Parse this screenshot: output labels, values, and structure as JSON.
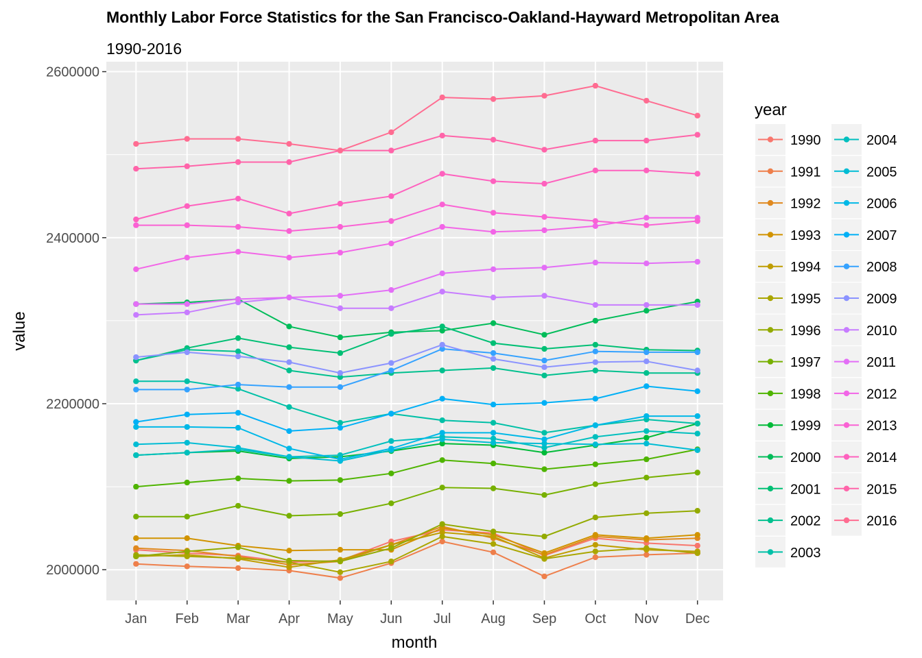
{
  "chart_data": {
    "type": "line",
    "title": "Monthly Labor Force Statistics for the San Francisco-Oakland-Hayward Metropolitan Area",
    "subtitle": "1990-2016",
    "xlabel": "month",
    "ylabel": "value",
    "categories": [
      "Jan",
      "Feb",
      "Mar",
      "Apr",
      "May",
      "Jun",
      "Jul",
      "Aug",
      "Sep",
      "Oct",
      "Nov",
      "Dec"
    ],
    "ylim": [
      1963000,
      2612000
    ],
    "yticks": [
      2000000,
      2200000,
      2400000,
      2600000
    ],
    "ytick_labels": [
      "2000000",
      "2200000",
      "2400000",
      "2600000"
    ],
    "grid": true,
    "legend_title": "year",
    "legend_placement": "right",
    "series": [
      {
        "name": "1990",
        "color": "#F8766D",
        "values": [
          2024000,
          2020000,
          2017000,
          2009000,
          2011000,
          2034000,
          2048000,
          2044000,
          2017000,
          2038000,
          2032000,
          2029000
        ]
      },
      {
        "name": "1991",
        "color": "#EE7F4B",
        "values": [
          2007000,
          2004000,
          2002000,
          1999000,
          1990000,
          2008000,
          2034000,
          2021000,
          1992000,
          2015000,
          2018000,
          2020000
        ]
      },
      {
        "name": "1992",
        "color": "#E0891F",
        "values": [
          2026000,
          2023000,
          2016000,
          2006000,
          2010000,
          2030000,
          2052000,
          2038000,
          2018000,
          2040000,
          2036000,
          2038000
        ]
      },
      {
        "name": "1993",
        "color": "#D19300",
        "values": [
          2038000,
          2038000,
          2029000,
          2023000,
          2024000,
          2024000,
          2050000,
          2042000,
          2020000,
          2042000,
          2038000,
          2042000
        ]
      },
      {
        "name": "1994",
        "color": "#BF9D00",
        "values": [
          2016000,
          2018000,
          2013000,
          2003000,
          2012000,
          2030000,
          2045000,
          2040000,
          2014000,
          2030000,
          2024000,
          2022000
        ]
      },
      {
        "name": "1995",
        "color": "#AAA600",
        "values": [
          2018000,
          2016000,
          2014000,
          2009000,
          1997000,
          2010000,
          2040000,
          2031000,
          2013000,
          2022000,
          2026000,
          2020000
        ]
      },
      {
        "name": "1996",
        "color": "#93AA00",
        "values": [
          2016000,
          2022000,
          2027000,
          2011000,
          2010000,
          2026000,
          2055000,
          2046000,
          2040000,
          2063000,
          2068000,
          2071000
        ]
      },
      {
        "name": "1997",
        "color": "#77B000",
        "values": [
          2064000,
          2064000,
          2077000,
          2065000,
          2067000,
          2080000,
          2099000,
          2098000,
          2090000,
          2103000,
          2111000,
          2117000
        ]
      },
      {
        "name": "1998",
        "color": "#4FB400",
        "values": [
          2100000,
          2105000,
          2110000,
          2107000,
          2108000,
          2116000,
          2132000,
          2128000,
          2121000,
          2127000,
          2133000,
          2145000
        ]
      },
      {
        "name": "1999",
        "color": "#00BA38",
        "values": [
          2138000,
          2141000,
          2143000,
          2134000,
          2136000,
          2143000,
          2152000,
          2150000,
          2141000,
          2150000,
          2159000,
          2176000
        ]
      },
      {
        "name": "2000",
        "color": "#00BC59",
        "values": [
          2320000,
          2322000,
          2326000,
          2293000,
          2280000,
          2286000,
          2288000,
          2297000,
          2283000,
          2300000,
          2312000,
          2323000
        ]
      },
      {
        "name": "2001",
        "color": "#00BF74",
        "values": [
          2252000,
          2267000,
          2279000,
          2268000,
          2261000,
          2284000,
          2293000,
          2273000,
          2266000,
          2271000,
          2265000,
          2264000
        ]
      },
      {
        "name": "2002",
        "color": "#00C08E",
        "values": [
          2252000,
          2265000,
          2263000,
          2240000,
          2232000,
          2237000,
          2240000,
          2243000,
          2234000,
          2240000,
          2237000,
          2237000
        ]
      },
      {
        "name": "2003",
        "color": "#00C0A7",
        "values": [
          2227000,
          2227000,
          2218000,
          2196000,
          2177000,
          2188000,
          2180000,
          2177000,
          2165000,
          2174000,
          2181000,
          2176000
        ]
      },
      {
        "name": "2004",
        "color": "#00BFBE",
        "values": [
          2138000,
          2141000,
          2145000,
          2136000,
          2138000,
          2155000,
          2160000,
          2158000,
          2147000,
          2160000,
          2167000,
          2164000
        ]
      },
      {
        "name": "2005",
        "color": "#00BCD4",
        "values": [
          2151000,
          2153000,
          2147000,
          2136000,
          2131000,
          2144000,
          2157000,
          2153000,
          2152000,
          2151000,
          2152000,
          2144000
        ]
      },
      {
        "name": "2006",
        "color": "#00B8E7",
        "values": [
          2172000,
          2172000,
          2171000,
          2146000,
          2133000,
          2146000,
          2165000,
          2165000,
          2157000,
          2174000,
          2185000,
          2185000
        ]
      },
      {
        "name": "2007",
        "color": "#00B0F6",
        "values": [
          2178000,
          2187000,
          2189000,
          2167000,
          2171000,
          2188000,
          2206000,
          2199000,
          2201000,
          2206000,
          2221000,
          2215000
        ]
      },
      {
        "name": "2008",
        "color": "#35A2FF",
        "values": [
          2217000,
          2217000,
          2223000,
          2220000,
          2220000,
          2240000,
          2266000,
          2261000,
          2252000,
          2263000,
          2262000,
          2262000
        ]
      },
      {
        "name": "2009",
        "color": "#8B93FF",
        "values": [
          2256000,
          2262000,
          2257000,
          2250000,
          2237000,
          2249000,
          2271000,
          2254000,
          2244000,
          2250000,
          2251000,
          2240000
        ]
      },
      {
        "name": "2010",
        "color": "#C77CFF",
        "values": [
          2307000,
          2310000,
          2322000,
          2328000,
          2315000,
          2315000,
          2335000,
          2328000,
          2330000,
          2319000,
          2319000,
          2319000
        ]
      },
      {
        "name": "2011",
        "color": "#E36EF6",
        "values": [
          2320000,
          2320000,
          2326000,
          2328000,
          2330000,
          2337000,
          2357000,
          2362000,
          2364000,
          2370000,
          2369000,
          2371000
        ]
      },
      {
        "name": "2012",
        "color": "#F265E7",
        "values": [
          2362000,
          2376000,
          2383000,
          2376000,
          2382000,
          2393000,
          2413000,
          2407000,
          2409000,
          2414000,
          2424000,
          2424000
        ]
      },
      {
        "name": "2013",
        "color": "#FA62D4",
        "values": [
          2415000,
          2415000,
          2413000,
          2408000,
          2413000,
          2420000,
          2440000,
          2430000,
          2425000,
          2420000,
          2415000,
          2420000
        ]
      },
      {
        "name": "2014",
        "color": "#FE61BE",
        "values": [
          2422000,
          2438000,
          2447000,
          2429000,
          2441000,
          2450000,
          2477000,
          2468000,
          2465000,
          2481000,
          2481000,
          2477000
        ]
      },
      {
        "name": "2015",
        "color": "#FF64A9",
        "values": [
          2483000,
          2486000,
          2491000,
          2491000,
          2505000,
          2505000,
          2523000,
          2518000,
          2506000,
          2517000,
          2517000,
          2524000
        ]
      },
      {
        "name": "2016",
        "color": "#FF6C91",
        "values": [
          2513000,
          2519000,
          2519000,
          2513000,
          2505000,
          2527000,
          2569000,
          2567000,
          2571000,
          2583000,
          2565000,
          2547000
        ]
      }
    ]
  }
}
